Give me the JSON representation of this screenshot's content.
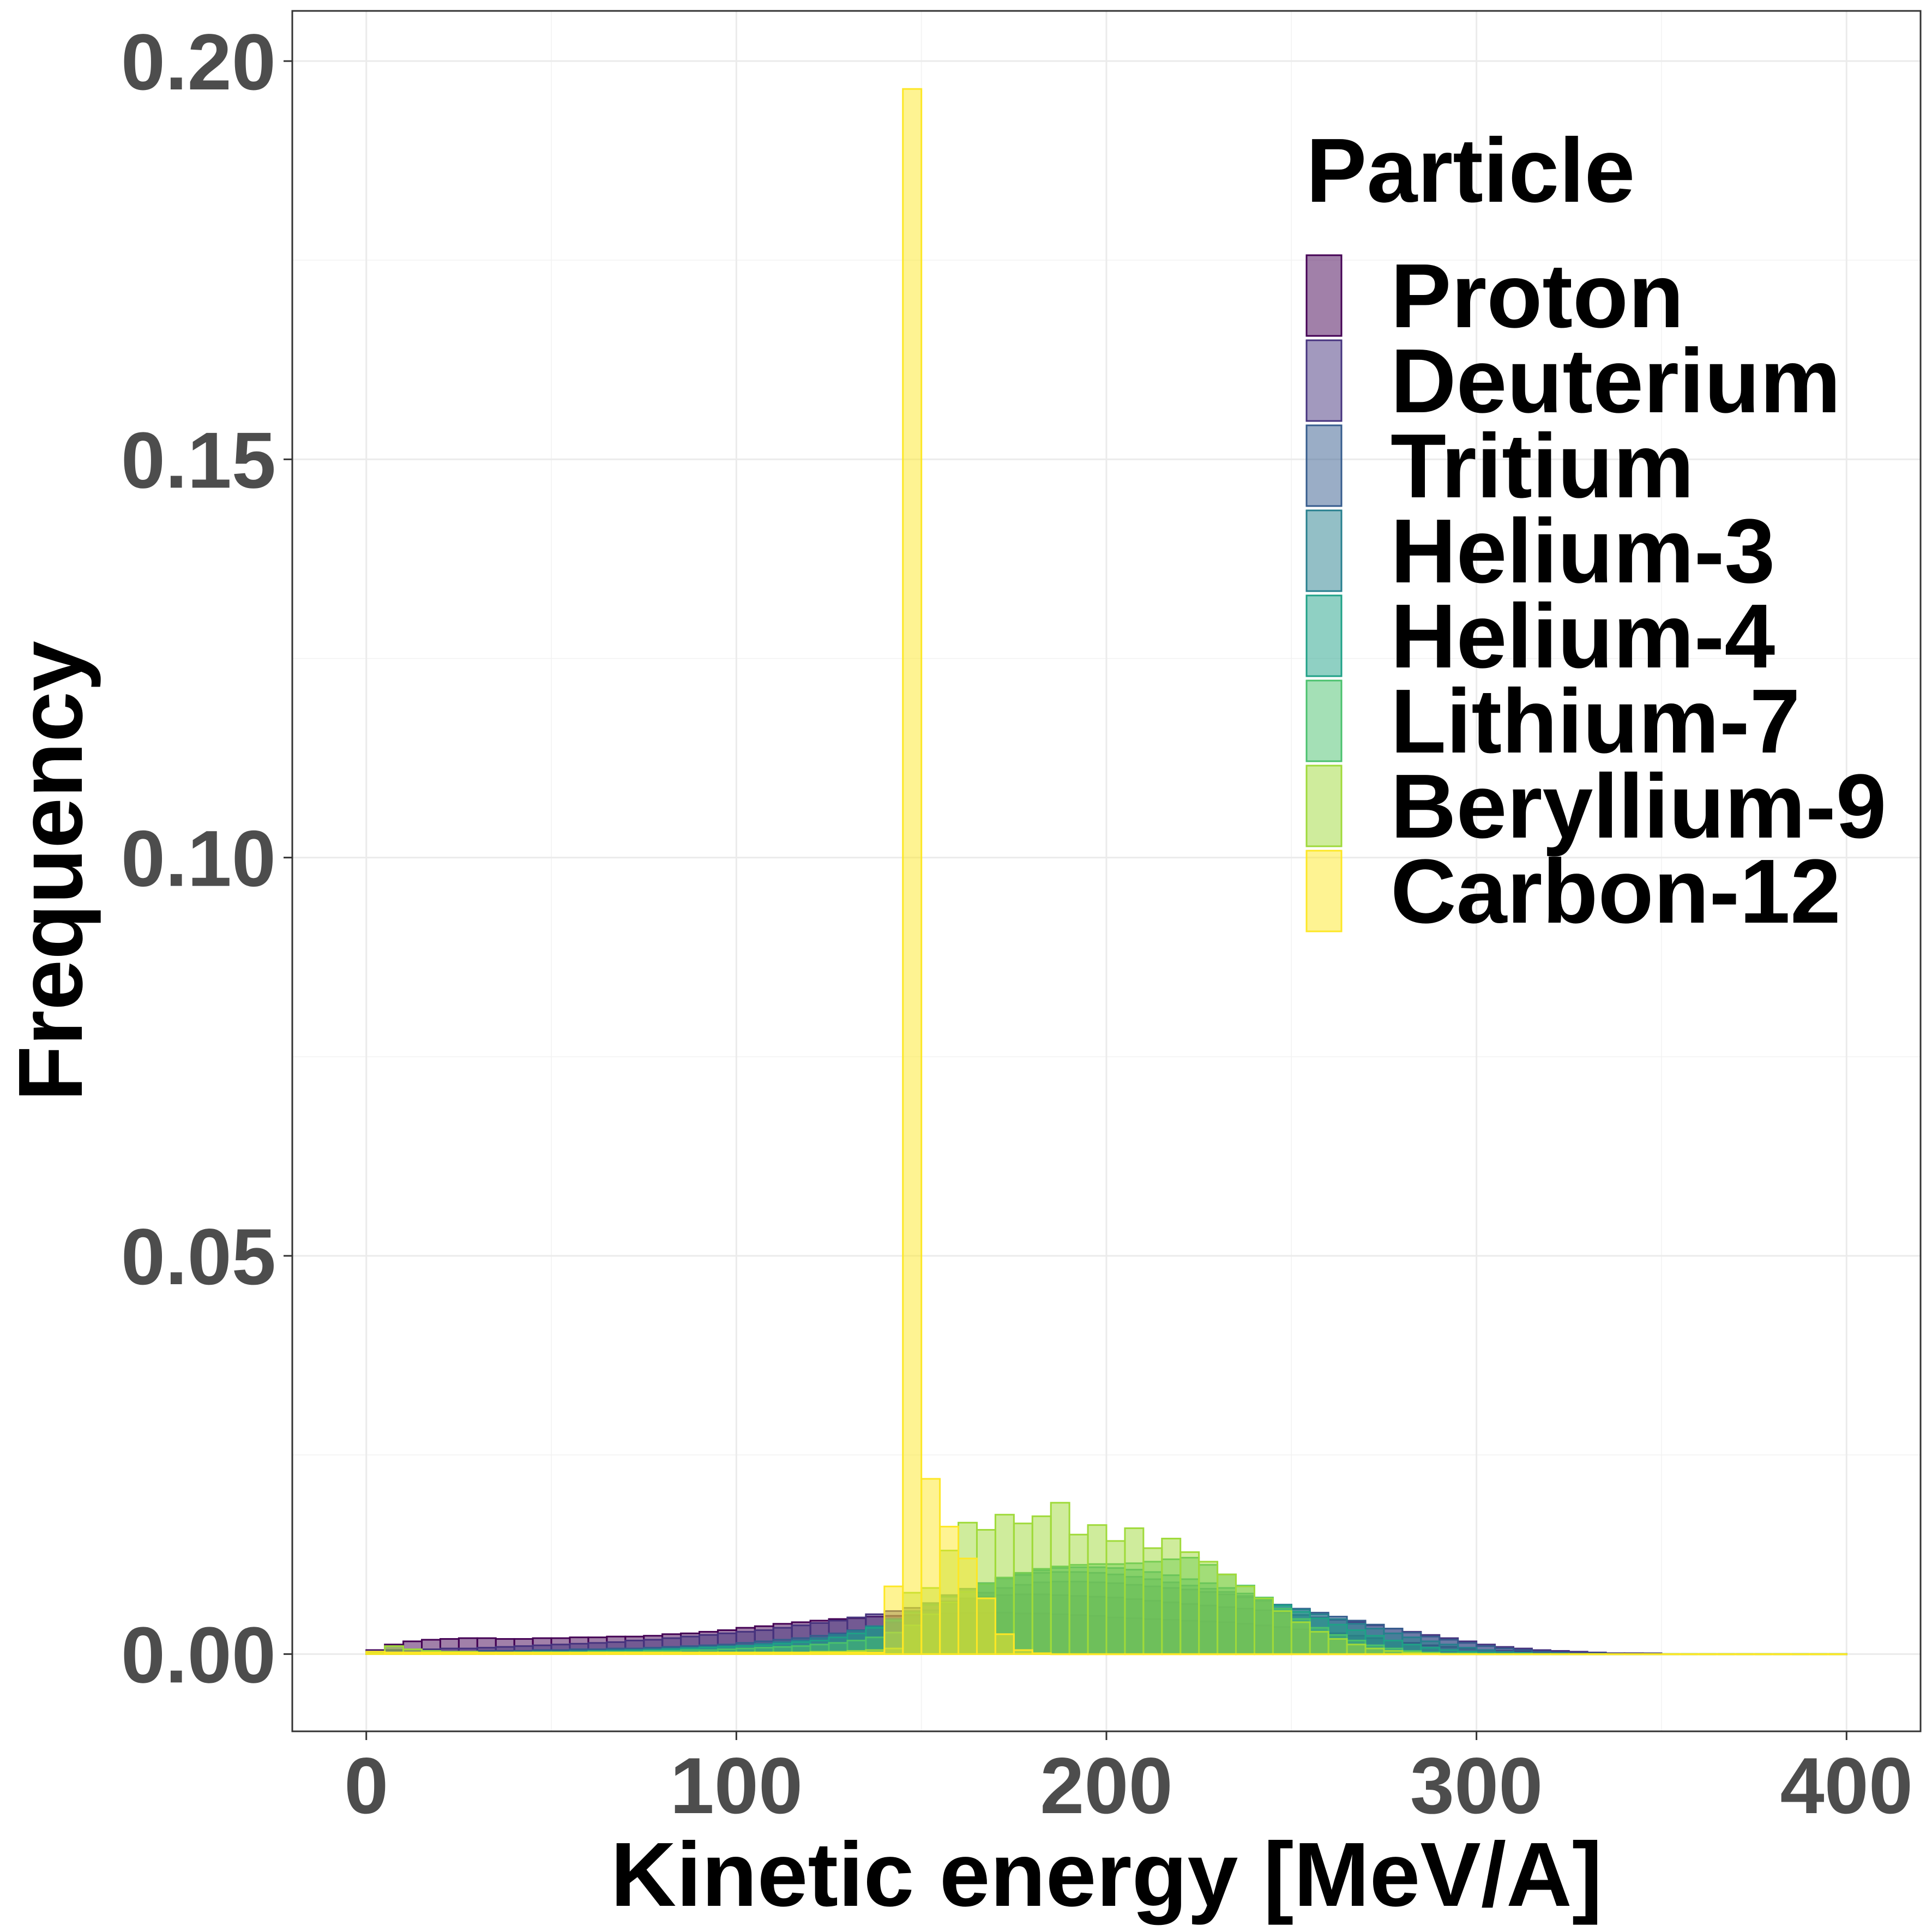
{
  "chart_data": {
    "type": "histogram",
    "xlabel": "Kinetic energy [MeV/A]",
    "ylabel": "Frequency",
    "xlim": [
      -20,
      420
    ],
    "ylim": [
      -0.0097,
      0.2063
    ],
    "x_ticks": [
      0,
      100,
      200,
      300,
      400
    ],
    "x_tick_labels": [
      "0",
      "100",
      "200",
      "300",
      "400"
    ],
    "y_ticks": [
      0.0,
      0.05,
      0.1,
      0.15,
      0.2
    ],
    "y_tick_labels": [
      "0.00",
      "0.05",
      "0.10",
      "0.15",
      "0.20"
    ],
    "grid": true,
    "bin_width": 5,
    "legend": {
      "title": "Particle",
      "position": "top-right"
    },
    "series": [
      {
        "name": "Proton",
        "color": "#440154",
        "x_start": 0,
        "values": [
          0.0005,
          0.0012,
          0.0016,
          0.0018,
          0.0019,
          0.002,
          0.002,
          0.0019,
          0.0019,
          0.002,
          0.002,
          0.0021,
          0.0021,
          0.0022,
          0.0022,
          0.0023,
          0.0025,
          0.0026,
          0.0028,
          0.003,
          0.0033,
          0.0035,
          0.0038,
          0.004,
          0.0042,
          0.0044,
          0.0045,
          0.0047,
          0.0048,
          0.0049,
          0.005,
          0.0051,
          0.0052,
          0.0052,
          0.0052,
          0.0051,
          0.0051,
          0.005,
          0.0049,
          0.0048,
          0.0046,
          0.0045,
          0.0044,
          0.0043,
          0.0042,
          0.0041,
          0.004,
          0.0038,
          0.0036,
          0.0034,
          0.0031,
          0.0028,
          0.0026,
          0.0023,
          0.002,
          0.0017,
          0.0014,
          0.0011,
          0.0009,
          0.0007,
          0.0005,
          0.0004,
          0.0003,
          0.0002,
          0.0002,
          0.0001,
          0.0001,
          0.0001,
          0.0001,
          0.0,
          0.0,
          0.0,
          0.0,
          0.0,
          0.0,
          0.0,
          0.0,
          0.0,
          0.0,
          0.0
        ]
      },
      {
        "name": "Deuterium",
        "color": "#46337E",
        "x_start": 0,
        "values": [
          0.0004,
          0.0005,
          0.0006,
          0.0006,
          0.0007,
          0.0007,
          0.0008,
          0.0009,
          0.001,
          0.0011,
          0.0012,
          0.0013,
          0.0014,
          0.0015,
          0.0017,
          0.0018,
          0.002,
          0.0022,
          0.0024,
          0.0026,
          0.0028,
          0.003,
          0.0033,
          0.0036,
          0.0039,
          0.0042,
          0.0046,
          0.005,
          0.0054,
          0.0058,
          0.0062,
          0.0066,
          0.007,
          0.0072,
          0.0074,
          0.0075,
          0.0075,
          0.0074,
          0.0073,
          0.0072,
          0.0071,
          0.0069,
          0.0067,
          0.0065,
          0.0063,
          0.0061,
          0.0059,
          0.0057,
          0.0055,
          0.0052,
          0.0049,
          0.0046,
          0.0043,
          0.004,
          0.0036,
          0.0032,
          0.0028,
          0.0024,
          0.002,
          0.0016,
          0.0012,
          0.0009,
          0.0007,
          0.0005,
          0.0004,
          0.0003,
          0.0002,
          0.0001,
          0.0001,
          0.0001,
          0.0,
          0.0,
          0.0,
          0.0,
          0.0,
          0.0,
          0.0,
          0.0,
          0.0,
          0.0
        ]
      },
      {
        "name": "Tritium",
        "color": "#365C8D",
        "x_start": 0,
        "values": [
          0.0002,
          0.0002,
          0.0002,
          0.0003,
          0.0003,
          0.0003,
          0.0004,
          0.0004,
          0.0004,
          0.0005,
          0.0005,
          0.0006,
          0.0006,
          0.0007,
          0.0007,
          0.0008,
          0.0009,
          0.001,
          0.0011,
          0.0012,
          0.0014,
          0.0016,
          0.0018,
          0.002,
          0.0023,
          0.0026,
          0.003,
          0.0034,
          0.004,
          0.0047,
          0.0055,
          0.0063,
          0.007,
          0.0077,
          0.0083,
          0.0087,
          0.009,
          0.0091,
          0.0091,
          0.009,
          0.0089,
          0.0087,
          0.0085,
          0.0083,
          0.0081,
          0.0078,
          0.0075,
          0.0071,
          0.0067,
          0.0062,
          0.0057,
          0.0052,
          0.0047,
          0.0042,
          0.0037,
          0.0032,
          0.0027,
          0.0022,
          0.0018,
          0.0014,
          0.001,
          0.0007,
          0.0005,
          0.0003,
          0.0002,
          0.0001,
          0.0001,
          0.0,
          0.0,
          0.0,
          0.0,
          0.0,
          0.0,
          0.0,
          0.0,
          0.0,
          0.0,
          0.0,
          0.0,
          0.0
        ]
      },
      {
        "name": "Helium-3",
        "color": "#277F8E",
        "x_start": 0,
        "values": [
          0.0001,
          0.0001,
          0.0001,
          0.0001,
          0.0002,
          0.0002,
          0.0002,
          0.0002,
          0.0003,
          0.0003,
          0.0003,
          0.0004,
          0.0004,
          0.0005,
          0.0005,
          0.0006,
          0.0007,
          0.0008,
          0.0009,
          0.001,
          0.0011,
          0.0013,
          0.0015,
          0.0017,
          0.002,
          0.0024,
          0.0029,
          0.0035,
          0.0044,
          0.0054,
          0.0064,
          0.0074,
          0.0082,
          0.0089,
          0.0095,
          0.0099,
          0.0102,
          0.0103,
          0.0103,
          0.0102,
          0.01,
          0.0097,
          0.0094,
          0.009,
          0.0086,
          0.0082,
          0.0078,
          0.0073,
          0.0068,
          0.0062,
          0.0056,
          0.005,
          0.0044,
          0.0038,
          0.0032,
          0.0026,
          0.0021,
          0.0016,
          0.0012,
          0.0008,
          0.0005,
          0.0003,
          0.0002,
          0.0001,
          0.0001,
          0.0,
          0.0,
          0.0,
          0.0,
          0.0,
          0.0,
          0.0,
          0.0,
          0.0,
          0.0,
          0.0,
          0.0,
          0.0,
          0.0,
          0.0
        ]
      },
      {
        "name": "Helium-4",
        "color": "#1FA187",
        "x_start": 0,
        "values": [
          0.0001,
          0.0001,
          0.0001,
          0.0001,
          0.0001,
          0.0002,
          0.0002,
          0.0002,
          0.0002,
          0.0003,
          0.0003,
          0.0003,
          0.0004,
          0.0004,
          0.0005,
          0.0005,
          0.0006,
          0.0007,
          0.0008,
          0.0009,
          0.001,
          0.0011,
          0.0013,
          0.0015,
          0.0017,
          0.0021,
          0.0026,
          0.0033,
          0.0042,
          0.0052,
          0.0062,
          0.0072,
          0.0081,
          0.0089,
          0.0096,
          0.0101,
          0.0105,
          0.0108,
          0.0109,
          0.0109,
          0.0108,
          0.0106,
          0.0103,
          0.0099,
          0.0094,
          0.0089,
          0.0083,
          0.0076,
          0.0069,
          0.0061,
          0.0053,
          0.0045,
          0.0037,
          0.003,
          0.0023,
          0.0017,
          0.0012,
          0.0008,
          0.0005,
          0.0003,
          0.0002,
          0.0001,
          0.0001,
          0.0,
          0.0,
          0.0,
          0.0,
          0.0,
          0.0,
          0.0,
          0.0,
          0.0,
          0.0,
          0.0,
          0.0,
          0.0,
          0.0,
          0.0,
          0.0,
          0.0
        ]
      },
      {
        "name": "Lithium-7",
        "color": "#4AC16D",
        "x_start": 0,
        "values": [
          0.0001,
          0.0001,
          0.0001,
          0.0001,
          0.0001,
          0.0001,
          0.0001,
          0.0002,
          0.0002,
          0.0002,
          0.0002,
          0.0002,
          0.0003,
          0.0003,
          0.0003,
          0.0004,
          0.0004,
          0.0005,
          0.0005,
          0.0006,
          0.0007,
          0.0008,
          0.0009,
          0.001,
          0.0012,
          0.0014,
          0.0017,
          0.0021,
          0.0027,
          0.0036,
          0.005,
          0.0065,
          0.0078,
          0.0088,
          0.0096,
          0.0102,
          0.0107,
          0.011,
          0.0112,
          0.0113,
          0.0113,
          0.0114,
          0.0116,
          0.0119,
          0.0121,
          0.0112,
          0.01,
          0.0086,
          0.0071,
          0.0057,
          0.0044,
          0.0033,
          0.0024,
          0.0017,
          0.0011,
          0.0007,
          0.0004,
          0.0002,
          0.0001,
          0.0001,
          0.0,
          0.0,
          0.0,
          0.0,
          0.0,
          0.0,
          0.0,
          0.0,
          0.0,
          0.0,
          0.0,
          0.0,
          0.0,
          0.0,
          0.0,
          0.0,
          0.0,
          0.0,
          0.0,
          0.0
        ]
      },
      {
        "name": "Beryllium-9",
        "color": "#9FDA3A",
        "x_start": 0,
        "values": [
          0.0001,
          0.001,
          0.0006,
          0.0004,
          0.0003,
          0.0003,
          0.0002,
          0.0002,
          0.0002,
          0.0002,
          0.0002,
          0.0002,
          0.0002,
          0.0002,
          0.0002,
          0.0002,
          0.0002,
          0.0002,
          0.0002,
          0.0002,
          0.0002,
          0.0002,
          0.0002,
          0.0002,
          0.0003,
          0.0003,
          0.0004,
          0.0005,
          0.0007,
          0.0077,
          0.0083,
          0.013,
          0.0165,
          0.0156,
          0.0175,
          0.0164,
          0.0173,
          0.019,
          0.015,
          0.0162,
          0.0142,
          0.0158,
          0.0133,
          0.0145,
          0.0128,
          0.0116,
          0.01,
          0.0085,
          0.007,
          0.0054,
          0.004,
          0.0028,
          0.0019,
          0.0012,
          0.0007,
          0.0004,
          0.0002,
          0.0001,
          0.0,
          0.0,
          0.0,
          0.0,
          0.0,
          0.0,
          0.0,
          0.0,
          0.0,
          0.0,
          0.0,
          0.0,
          0.0,
          0.0,
          0.0,
          0.0,
          0.0,
          0.0,
          0.0,
          0.0,
          0.0,
          0.0
        ]
      },
      {
        "name": "Carbon-12",
        "color": "#FDE725",
        "x_start": 0,
        "values": [
          0.0003,
          0.0002,
          0.0002,
          0.0002,
          0.0002,
          0.0002,
          0.0002,
          0.0002,
          0.0002,
          0.0002,
          0.0002,
          0.0002,
          0.0002,
          0.0002,
          0.0002,
          0.0002,
          0.0002,
          0.0002,
          0.0002,
          0.0002,
          0.0002,
          0.0002,
          0.0002,
          0.0002,
          0.0002,
          0.0002,
          0.0002,
          0.0002,
          0.0085,
          0.1965,
          0.022,
          0.016,
          0.012,
          0.007,
          0.0025,
          0.0005,
          0.0001,
          0.0,
          0.0,
          0.0,
          0.0,
          0.0,
          0.0,
          0.0,
          0.0,
          0.0,
          0.0,
          0.0,
          0.0,
          0.0,
          0.0,
          0.0,
          0.0,
          0.0,
          0.0,
          0.0,
          0.0,
          0.0,
          0.0,
          0.0,
          0.0,
          0.0,
          0.0,
          0.0,
          0.0,
          0.0,
          0.0,
          0.0,
          0.0,
          0.0,
          0.0,
          0.0,
          0.0,
          0.0,
          0.0,
          0.0,
          0.0,
          0.0,
          0.0,
          0.0
        ]
      }
    ]
  }
}
